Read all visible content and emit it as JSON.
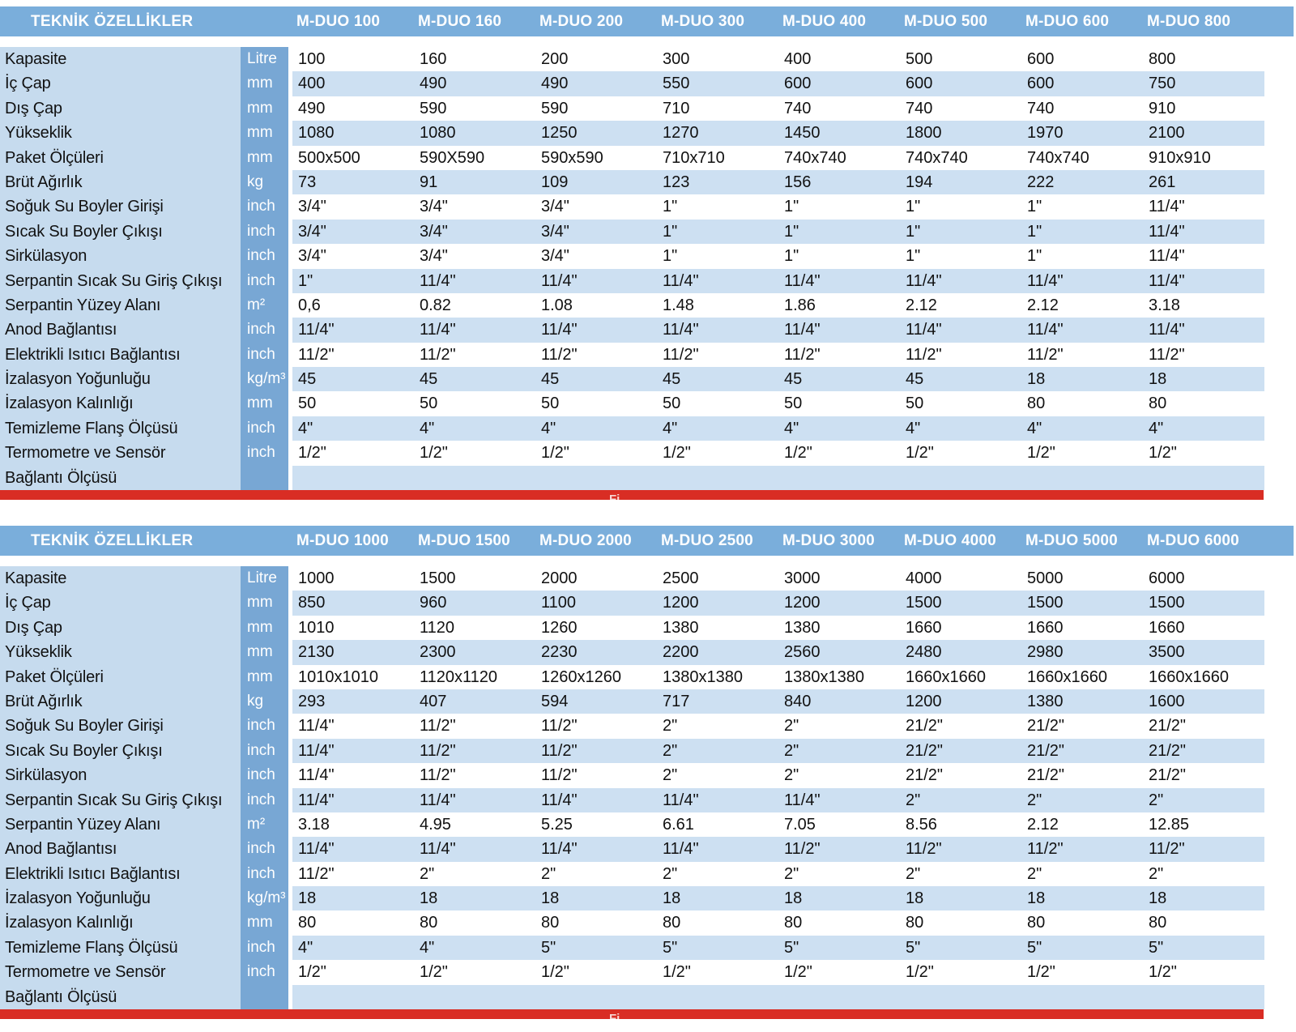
{
  "colors": {
    "header_band": "#7AAEDB",
    "label_column": "#C6DBEE",
    "unit_column": "#78A7D4",
    "row_stripe": "#CDE0F2",
    "red_bar": "#D92D24"
  },
  "tables": [
    {
      "title": "TEKNİK ÖZELLİKLER",
      "models": [
        "M-DUO 100",
        "M-DUO 160",
        "M-DUO 200",
        "M-DUO 300",
        "M-DUO 400",
        "M-DUO 500",
        "M-DUO 600",
        "M-DUO 800"
      ],
      "red_bar_fragment": "Fi",
      "rows": [
        {
          "label": "Kapasite",
          "unit": "Litre",
          "values": [
            "100",
            "160",
            "200",
            "300",
            "400",
            "500",
            "600",
            "800"
          ]
        },
        {
          "label": "İç Çap",
          "unit": "mm",
          "values": [
            "400",
            "490",
            "490",
            "550",
            "600",
            "600",
            "600",
            "750"
          ]
        },
        {
          "label": "Dış Çap",
          "unit": "mm",
          "values": [
            "490",
            "590",
            "590",
            "710",
            "740",
            "740",
            "740",
            "910"
          ]
        },
        {
          "label": "Yükseklik",
          "unit": "mm",
          "values": [
            "1080",
            "1080",
            "1250",
            "1270",
            "1450",
            "1800",
            "1970",
            "2100"
          ]
        },
        {
          "label": "Paket Ölçüleri",
          "unit": "mm",
          "values": [
            "500x500",
            "590X590",
            "590x590",
            "710x710",
            "740x740",
            "740x740",
            "740x740",
            "910x910"
          ]
        },
        {
          "label": "Brüt Ağırlık",
          "unit": "kg",
          "values": [
            "73",
            "91",
            "109",
            "123",
            "156",
            "194",
            "222",
            "261"
          ]
        },
        {
          "label": "Soğuk Su Boyler Girişi",
          "unit": "inch",
          "values": [
            "3/4\"",
            "3/4\"",
            "3/4\"",
            "1\"",
            "1\"",
            "1\"",
            "1\"",
            "11/4\""
          ]
        },
        {
          "label": "Sıcak Su Boyler Çıkışı",
          "unit": "inch",
          "values": [
            "3/4\"",
            "3/4\"",
            "3/4\"",
            "1\"",
            "1\"",
            "1\"",
            "1\"",
            "11/4\""
          ]
        },
        {
          "label": "Sirkülasyon",
          "unit": "inch",
          "values": [
            "3/4\"",
            "3/4\"",
            "3/4\"",
            "1\"",
            "1\"",
            "1\"",
            "1\"",
            "11/4\""
          ]
        },
        {
          "label": "Serpantin Sıcak Su Giriş Çıkışı",
          "unit": "inch",
          "values": [
            "1\"",
            "11/4\"",
            "11/4\"",
            "11/4\"",
            "11/4\"",
            "11/4\"",
            "11/4\"",
            "11/4\""
          ]
        },
        {
          "label": "Serpantin Yüzey Alanı",
          "unit": "m²",
          "values": [
            "0,6",
            "0.82",
            "1.08",
            "1.48",
            "1.86",
            "2.12",
            "2.12",
            "3.18"
          ]
        },
        {
          "label": "Anod Bağlantısı",
          "unit": "inch",
          "values": [
            "11/4\"",
            "11/4\"",
            "11/4\"",
            "11/4\"",
            "11/4\"",
            "11/4\"",
            "11/4\"",
            "11/4\""
          ]
        },
        {
          "label": "Elektrikli Isıtıcı Bağlantısı",
          "unit": "inch",
          "values": [
            "11/2\"",
            "11/2\"",
            "11/2\"",
            "11/2\"",
            "11/2\"",
            "11/2\"",
            "11/2\"",
            "11/2\""
          ]
        },
        {
          "label": "İzalasyon Yoğunluğu",
          "unit": "kg/m³",
          "values": [
            "45",
            "45",
            "45",
            "45",
            "45",
            "45",
            "18",
            "18"
          ]
        },
        {
          "label": "İzalasyon Kalınlığı",
          "unit": "mm",
          "values": [
            "50",
            "50",
            "50",
            "50",
            "50",
            "50",
            "80",
            "80"
          ]
        },
        {
          "label": "Temizleme Flanş Ölçüsü",
          "unit": "inch",
          "values": [
            "4\"",
            "4\"",
            "4\"",
            "4\"",
            "4\"",
            "4\"",
            "4\"",
            "4\""
          ]
        },
        {
          "label": "Termometre ve Sensör",
          "unit": "inch",
          "values": [
            "1/2\"",
            "1/2\"",
            "1/2\"",
            "1/2\"",
            "1/2\"",
            "1/2\"",
            "1/2\"",
            "1/2\""
          ]
        },
        {
          "label": "Bağlantı Ölçüsü",
          "unit": "",
          "values": [
            "",
            "",
            "",
            "",
            "",
            "",
            "",
            ""
          ]
        }
      ]
    },
    {
      "title": "TEKNİK ÖZELLİKLER",
      "models": [
        "M-DUO 1000",
        "M-DUO 1500",
        "M-DUO 2000",
        "M-DUO 2500",
        "M-DUO 3000",
        "M-DUO 4000",
        "M-DUO 5000",
        "M-DUO 6000"
      ],
      "red_bar_fragment": "Fi",
      "rows": [
        {
          "label": "Kapasite",
          "unit": "Litre",
          "values": [
            "1000",
            "1500",
            "2000",
            "2500",
            "3000",
            "4000",
            "5000",
            "6000"
          ]
        },
        {
          "label": "İç Çap",
          "unit": "mm",
          "values": [
            "850",
            "960",
            "1100",
            "1200",
            "1200",
            "1500",
            "1500",
            "1500"
          ]
        },
        {
          "label": "Dış Çap",
          "unit": "mm",
          "values": [
            "1010",
            "1120",
            "1260",
            "1380",
            "1380",
            "1660",
            "1660",
            "1660"
          ]
        },
        {
          "label": "Yükseklik",
          "unit": "mm",
          "values": [
            "2130",
            "2300",
            "2230",
            "2200",
            "2560",
            "2480",
            "2980",
            "3500"
          ]
        },
        {
          "label": "Paket Ölçüleri",
          "unit": "mm",
          "values": [
            "1010x1010",
            "1120x1120",
            "1260x1260",
            "1380x1380",
            "1380x1380",
            "1660x1660",
            "1660x1660",
            "1660x1660"
          ]
        },
        {
          "label": "Brüt Ağırlık",
          "unit": "kg",
          "values": [
            "293",
            "407",
            "594",
            "717",
            "840",
            "1200",
            "1380",
            "1600"
          ]
        },
        {
          "label": "Soğuk Su Boyler Girişi",
          "unit": "inch",
          "values": [
            "11/4\"",
            "11/2\"",
            "11/2\"",
            "2\"",
            "2\"",
            "21/2\"",
            "21/2\"",
            "21/2\""
          ]
        },
        {
          "label": "Sıcak Su Boyler Çıkışı",
          "unit": "inch",
          "values": [
            "11/4\"",
            "11/2\"",
            "11/2\"",
            "2\"",
            "2\"",
            "21/2\"",
            "21/2\"",
            "21/2\""
          ]
        },
        {
          "label": "Sirkülasyon",
          "unit": "inch",
          "values": [
            "11/4\"",
            "11/2\"",
            "11/2\"",
            "2\"",
            "2\"",
            "21/2\"",
            "21/2\"",
            "21/2\""
          ]
        },
        {
          "label": "Serpantin Sıcak Su Giriş Çıkışı",
          "unit": "inch",
          "values": [
            "11/4\"",
            "11/4\"",
            "11/4\"",
            "11/4\"",
            "11/4\"",
            "2\"",
            "2\"",
            "2\""
          ]
        },
        {
          "label": "Serpantin Yüzey Alanı",
          "unit": "m²",
          "values": [
            "3.18",
            "4.95",
            "5.25",
            "6.61",
            "7.05",
            "8.56",
            "2.12",
            "12.85"
          ]
        },
        {
          "label": "Anod Bağlantısı",
          "unit": "inch",
          "values": [
            "11/4\"",
            "11/4\"",
            "11/4\"",
            "11/4\"",
            "11/2\"",
            "11/2\"",
            "11/2\"",
            "11/2\""
          ]
        },
        {
          "label": "Elektrikli Isıtıcı Bağlantısı",
          "unit": "inch",
          "values": [
            "11/2\"",
            "2\"",
            "2\"",
            "2\"",
            "2\"",
            "2\"",
            "2\"",
            "2\""
          ]
        },
        {
          "label": "İzalasyon Yoğunluğu",
          "unit": "kg/m³",
          "values": [
            "18",
            "18",
            "18",
            "18",
            "18",
            "18",
            "18",
            "18"
          ]
        },
        {
          "label": "İzalasyon Kalınlığı",
          "unit": "mm",
          "values": [
            "80",
            "80",
            "80",
            "80",
            "80",
            "80",
            "80",
            "80"
          ]
        },
        {
          "label": "Temizleme Flanş Ölçüsü",
          "unit": "inch",
          "values": [
            "4\"",
            "4\"",
            "5\"",
            "5\"",
            "5\"",
            "5\"",
            "5\"",
            "5\""
          ]
        },
        {
          "label": "Termometre ve Sensör",
          "unit": "inch",
          "values": [
            "1/2\"",
            "1/2\"",
            "1/2\"",
            "1/2\"",
            "1/2\"",
            "1/2\"",
            "1/2\"",
            "1/2\""
          ]
        },
        {
          "label": "Bağlantı Ölçüsü",
          "unit": "",
          "values": [
            "",
            "",
            "",
            "",
            "",
            "",
            "",
            ""
          ]
        }
      ]
    }
  ]
}
